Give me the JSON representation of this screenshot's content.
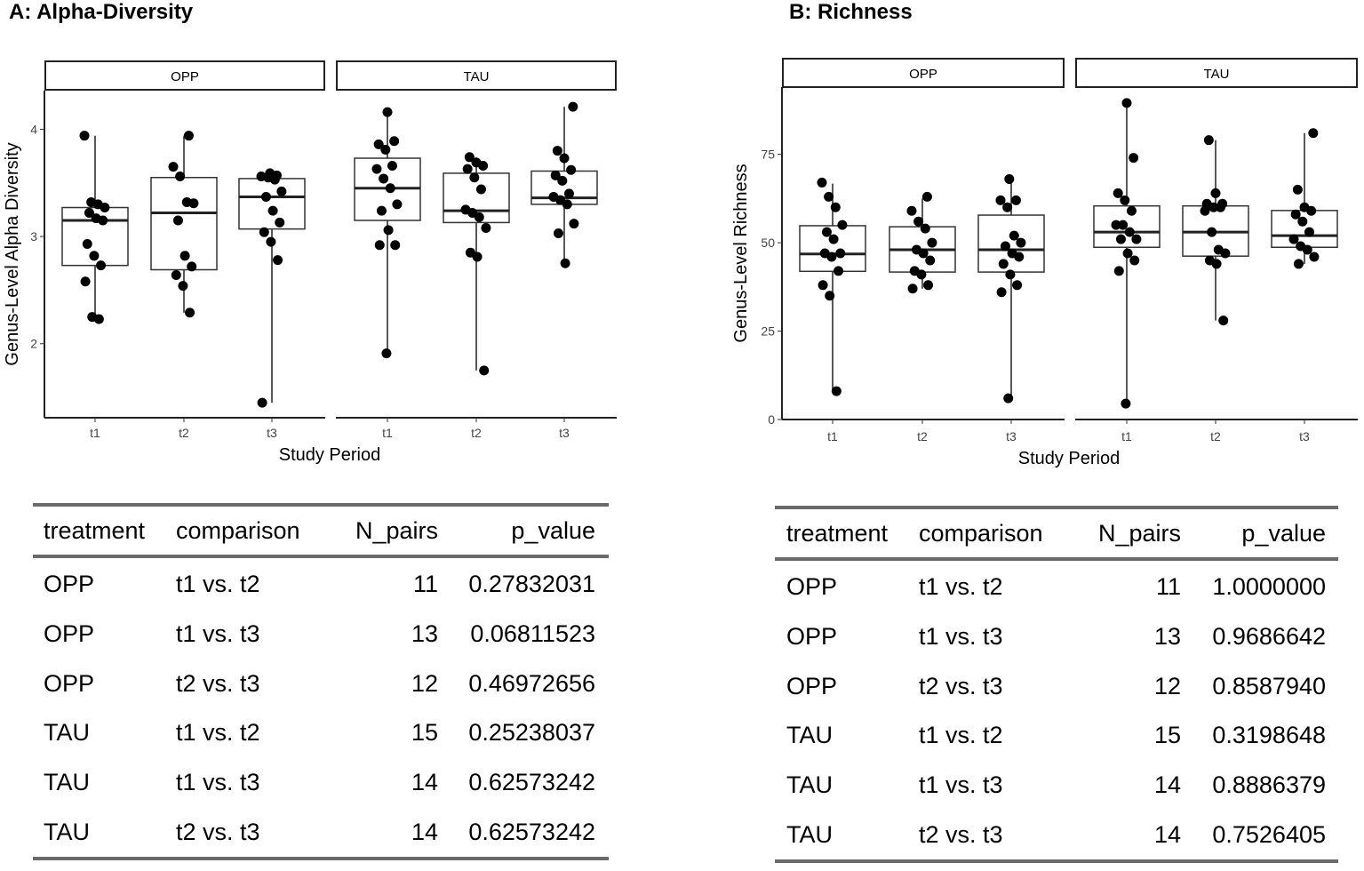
{
  "panels": [
    {
      "title": "A: Alpha-Diversity",
      "chart_data": {
        "type": "boxplot",
        "title": "A: Alpha-Diversity",
        "xlabel": "Study Period",
        "ylabel": "Genus-Level Alpha Diversity",
        "facets": [
          "OPP",
          "TAU"
        ],
        "categories": [
          "t1",
          "t2",
          "t3"
        ],
        "yticks": [
          2,
          3,
          4
        ],
        "ylim": [
          1.31,
          4.36
        ],
        "grid": false,
        "boxes": {
          "OPP": [
            {
              "q1": 2.73,
              "median": 3.15,
              "q3": 3.27,
              "whisker_low": 2.23,
              "whisker_high": 3.94,
              "points": [
                3.94,
                3.32,
                3.3,
                3.27,
                3.22,
                3.17,
                3.15,
                2.93,
                2.82,
                2.73,
                2.58,
                2.25,
                2.23
              ]
            },
            {
              "q1": 2.69,
              "median": 3.22,
              "q3": 3.55,
              "whisker_low": 2.29,
              "whisker_high": 3.94,
              "points": [
                3.94,
                3.65,
                3.56,
                3.32,
                3.31,
                3.15,
                2.82,
                2.72,
                2.64,
                2.54,
                2.29
              ]
            },
            {
              "q1": 3.07,
              "median": 3.37,
              "q3": 3.54,
              "whisker_low": 1.45,
              "whisker_high": 3.59,
              "points": [
                3.59,
                3.57,
                3.56,
                3.55,
                3.53,
                3.42,
                3.37,
                3.24,
                3.13,
                3.04,
                2.95,
                2.78,
                1.45
              ]
            }
          ],
          "TAU": [
            {
              "q1": 3.15,
              "median": 3.45,
              "q3": 3.73,
              "whisker_low": 1.91,
              "whisker_high": 4.16,
              "points": [
                4.16,
                3.89,
                3.86,
                3.81,
                3.66,
                3.63,
                3.54,
                3.45,
                3.3,
                3.24,
                3.06,
                2.92,
                2.92,
                1.91
              ]
            },
            {
              "q1": 3.13,
              "median": 3.24,
              "q3": 3.59,
              "whisker_low": 1.75,
              "whisker_high": 3.74,
              "points": [
                3.74,
                3.69,
                3.66,
                3.63,
                3.55,
                3.44,
                3.25,
                3.22,
                3.18,
                3.08,
                2.85,
                2.81,
                1.75
              ]
            },
            {
              "q1": 3.3,
              "median": 3.36,
              "q3": 3.61,
              "whisker_low": 2.75,
              "whisker_high": 4.21,
              "points": [
                4.21,
                3.8,
                3.73,
                3.62,
                3.57,
                3.52,
                3.4,
                3.37,
                3.34,
                3.3,
                3.12,
                3.03,
                2.75
              ]
            }
          ]
        }
      },
      "table": {
        "headers": [
          "treatment",
          "comparison",
          "N_pairs",
          "p_value"
        ],
        "rows": [
          [
            "OPP",
            "t1 vs. t2",
            "11",
            "0.27832031"
          ],
          [
            "OPP",
            "t1 vs. t3",
            "13",
            "0.06811523"
          ],
          [
            "OPP",
            "t2 vs. t3",
            "12",
            "0.46972656"
          ],
          [
            "TAU",
            "t1 vs. t2",
            "15",
            "0.25238037"
          ],
          [
            "TAU",
            "t1 vs. t3",
            "14",
            "0.62573242"
          ],
          [
            "TAU",
            "t2 vs. t3",
            "14",
            "0.62573242"
          ]
        ]
      }
    },
    {
      "title": "B: Richness",
      "chart_data": {
        "type": "boxplot",
        "title": "B: Richness",
        "xlabel": "Study Period",
        "ylabel": "Genus-Level Richness",
        "facets": [
          "OPP",
          "TAU"
        ],
        "categories": [
          "t1",
          "t2",
          "t3"
        ],
        "yticks": [
          0,
          25,
          50,
          75
        ],
        "ylim": [
          0,
          94
        ],
        "grid": false,
        "boxes": {
          "OPP": [
            {
              "q1": 41.9,
              "median": 46.8,
              "q3": 54.8,
              "whisker_low": 8,
              "whisker_high": 66.7,
              "points": [
                67,
                63,
                60,
                55,
                53,
                51,
                47,
                47,
                46,
                42,
                38,
                35,
                8
              ]
            },
            {
              "q1": 41.7,
              "median": 48,
              "q3": 54.5,
              "whisker_low": 37,
              "whisker_high": 62.5,
              "points": [
                63,
                59,
                56,
                54,
                50,
                48,
                47,
                45,
                42,
                41,
                38,
                37
              ]
            },
            {
              "q1": 41.7,
              "median": 48,
              "q3": 57.8,
              "whisker_low": 6,
              "whisker_high": 68,
              "points": [
                68,
                62,
                62,
                60,
                52,
                50,
                49,
                47,
                46,
                44,
                41,
                38,
                36,
                6
              ]
            }
          ],
          "TAU": [
            {
              "q1": 48.7,
              "median": 53,
              "q3": 60.4,
              "whisker_low": 4.5,
              "whisker_high": 89.5,
              "points": [
                89.5,
                74,
                64,
                62,
                59,
                55,
                55,
                53,
                51,
                51,
                47,
                45,
                42,
                4.5
              ]
            },
            {
              "q1": 46.2,
              "median": 53,
              "q3": 60.4,
              "whisker_low": 28,
              "whisker_high": 79,
              "points": [
                79,
                64,
                61,
                61,
                60,
                60,
                59,
                53,
                48,
                47,
                45,
                44,
                28
              ]
            },
            {
              "q1": 48.7,
              "median": 52,
              "q3": 59.1,
              "whisker_low": 44,
              "whisker_high": 81,
              "points": [
                81,
                65,
                60,
                59,
                58,
                56,
                53,
                51,
                49,
                48,
                46,
                44
              ]
            }
          ]
        }
      },
      "table": {
        "headers": [
          "treatment",
          "comparison",
          "N_pairs",
          "p_value"
        ],
        "rows": [
          [
            "OPP",
            "t1 vs. t2",
            "11",
            "1.0000000"
          ],
          [
            "OPP",
            "t1 vs. t3",
            "13",
            "0.9686642"
          ],
          [
            "OPP",
            "t2 vs. t3",
            "12",
            "0.8587940"
          ],
          [
            "TAU",
            "t1 vs. t2",
            "15",
            "0.3198648"
          ],
          [
            "TAU",
            "t1 vs. t3",
            "14",
            "0.8886379"
          ],
          [
            "TAU",
            "t2 vs. t3",
            "14",
            "0.7526405"
          ]
        ]
      }
    }
  ]
}
